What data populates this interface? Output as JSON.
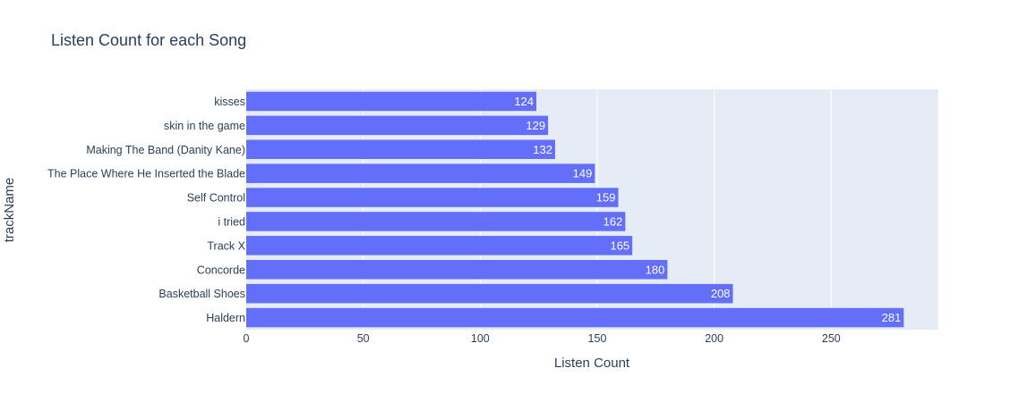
{
  "chart_data": {
    "type": "bar",
    "orientation": "horizontal",
    "title": "Listen Count for each Song",
    "xlabel": "Listen Count",
    "ylabel": "trackName",
    "categories": [
      "kisses",
      "skin in the game",
      "Making The Band (Danity Kane)",
      "The Place Where He Inserted the Blade",
      "Self Control",
      "i tried",
      "Track X",
      "Concorde",
      "Basketball Shoes",
      "Haldern"
    ],
    "values": [
      124,
      129,
      132,
      149,
      159,
      162,
      165,
      180,
      208,
      281
    ],
    "xlim": [
      0,
      295.8
    ],
    "xticks": [
      0,
      50,
      100,
      150,
      200,
      250
    ],
    "grid": true,
    "bar_color": "#636efa",
    "plot_bg": "#e5ecf6"
  }
}
